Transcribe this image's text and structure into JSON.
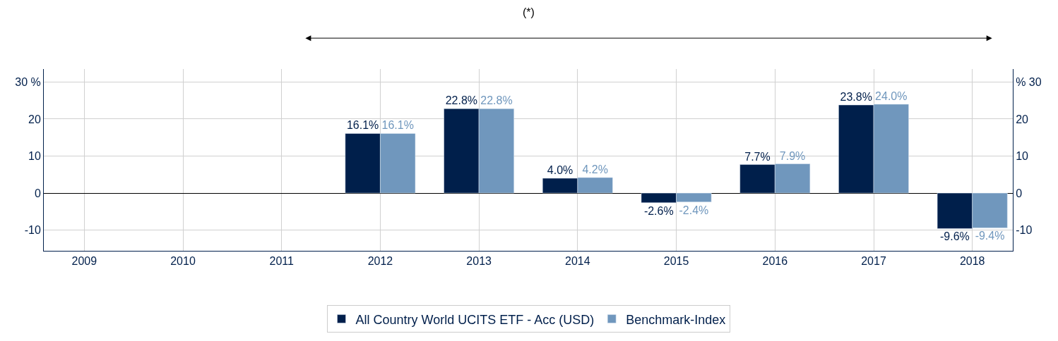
{
  "chart_data": {
    "type": "bar",
    "categories": [
      "2009",
      "2010",
      "2011",
      "2012",
      "2013",
      "2014",
      "2015",
      "2016",
      "2017",
      "2018"
    ],
    "series": [
      {
        "name": "All Country World UCITS ETF - Acc (USD)",
        "color": "#001f4b",
        "values": [
          null,
          null,
          null,
          16.1,
          22.8,
          4.0,
          -2.6,
          7.7,
          23.8,
          -9.6
        ],
        "value_labels": [
          null,
          null,
          null,
          "16.1%",
          "22.8%",
          "4.0%",
          "-2.6%",
          "7.7%",
          "23.8%",
          "-9.6%"
        ]
      },
      {
        "name": "Benchmark-Index",
        "color": "#7097bd",
        "values": [
          null,
          null,
          null,
          16.1,
          22.8,
          4.2,
          -2.4,
          7.9,
          24.0,
          -9.4
        ],
        "value_labels": [
          null,
          null,
          null,
          "16.1%",
          "22.8%",
          "4.2%",
          "-2.4%",
          "7.9%",
          "24.0%",
          "-9.4%"
        ]
      }
    ],
    "ylim": [
      -15.6,
      33.5
    ],
    "yticks": [
      -10,
      0,
      10,
      20,
      {
        "value": 30,
        "label": "30 %"
      }
    ],
    "y2lim": [
      -15.6,
      33.5
    ],
    "y2ticks": [
      -10,
      0,
      10,
      20,
      {
        "value": 30,
        "label": "% 30"
      }
    ],
    "annotations": [
      "(*)"
    ],
    "grid": true,
    "legend": "bottom"
  }
}
